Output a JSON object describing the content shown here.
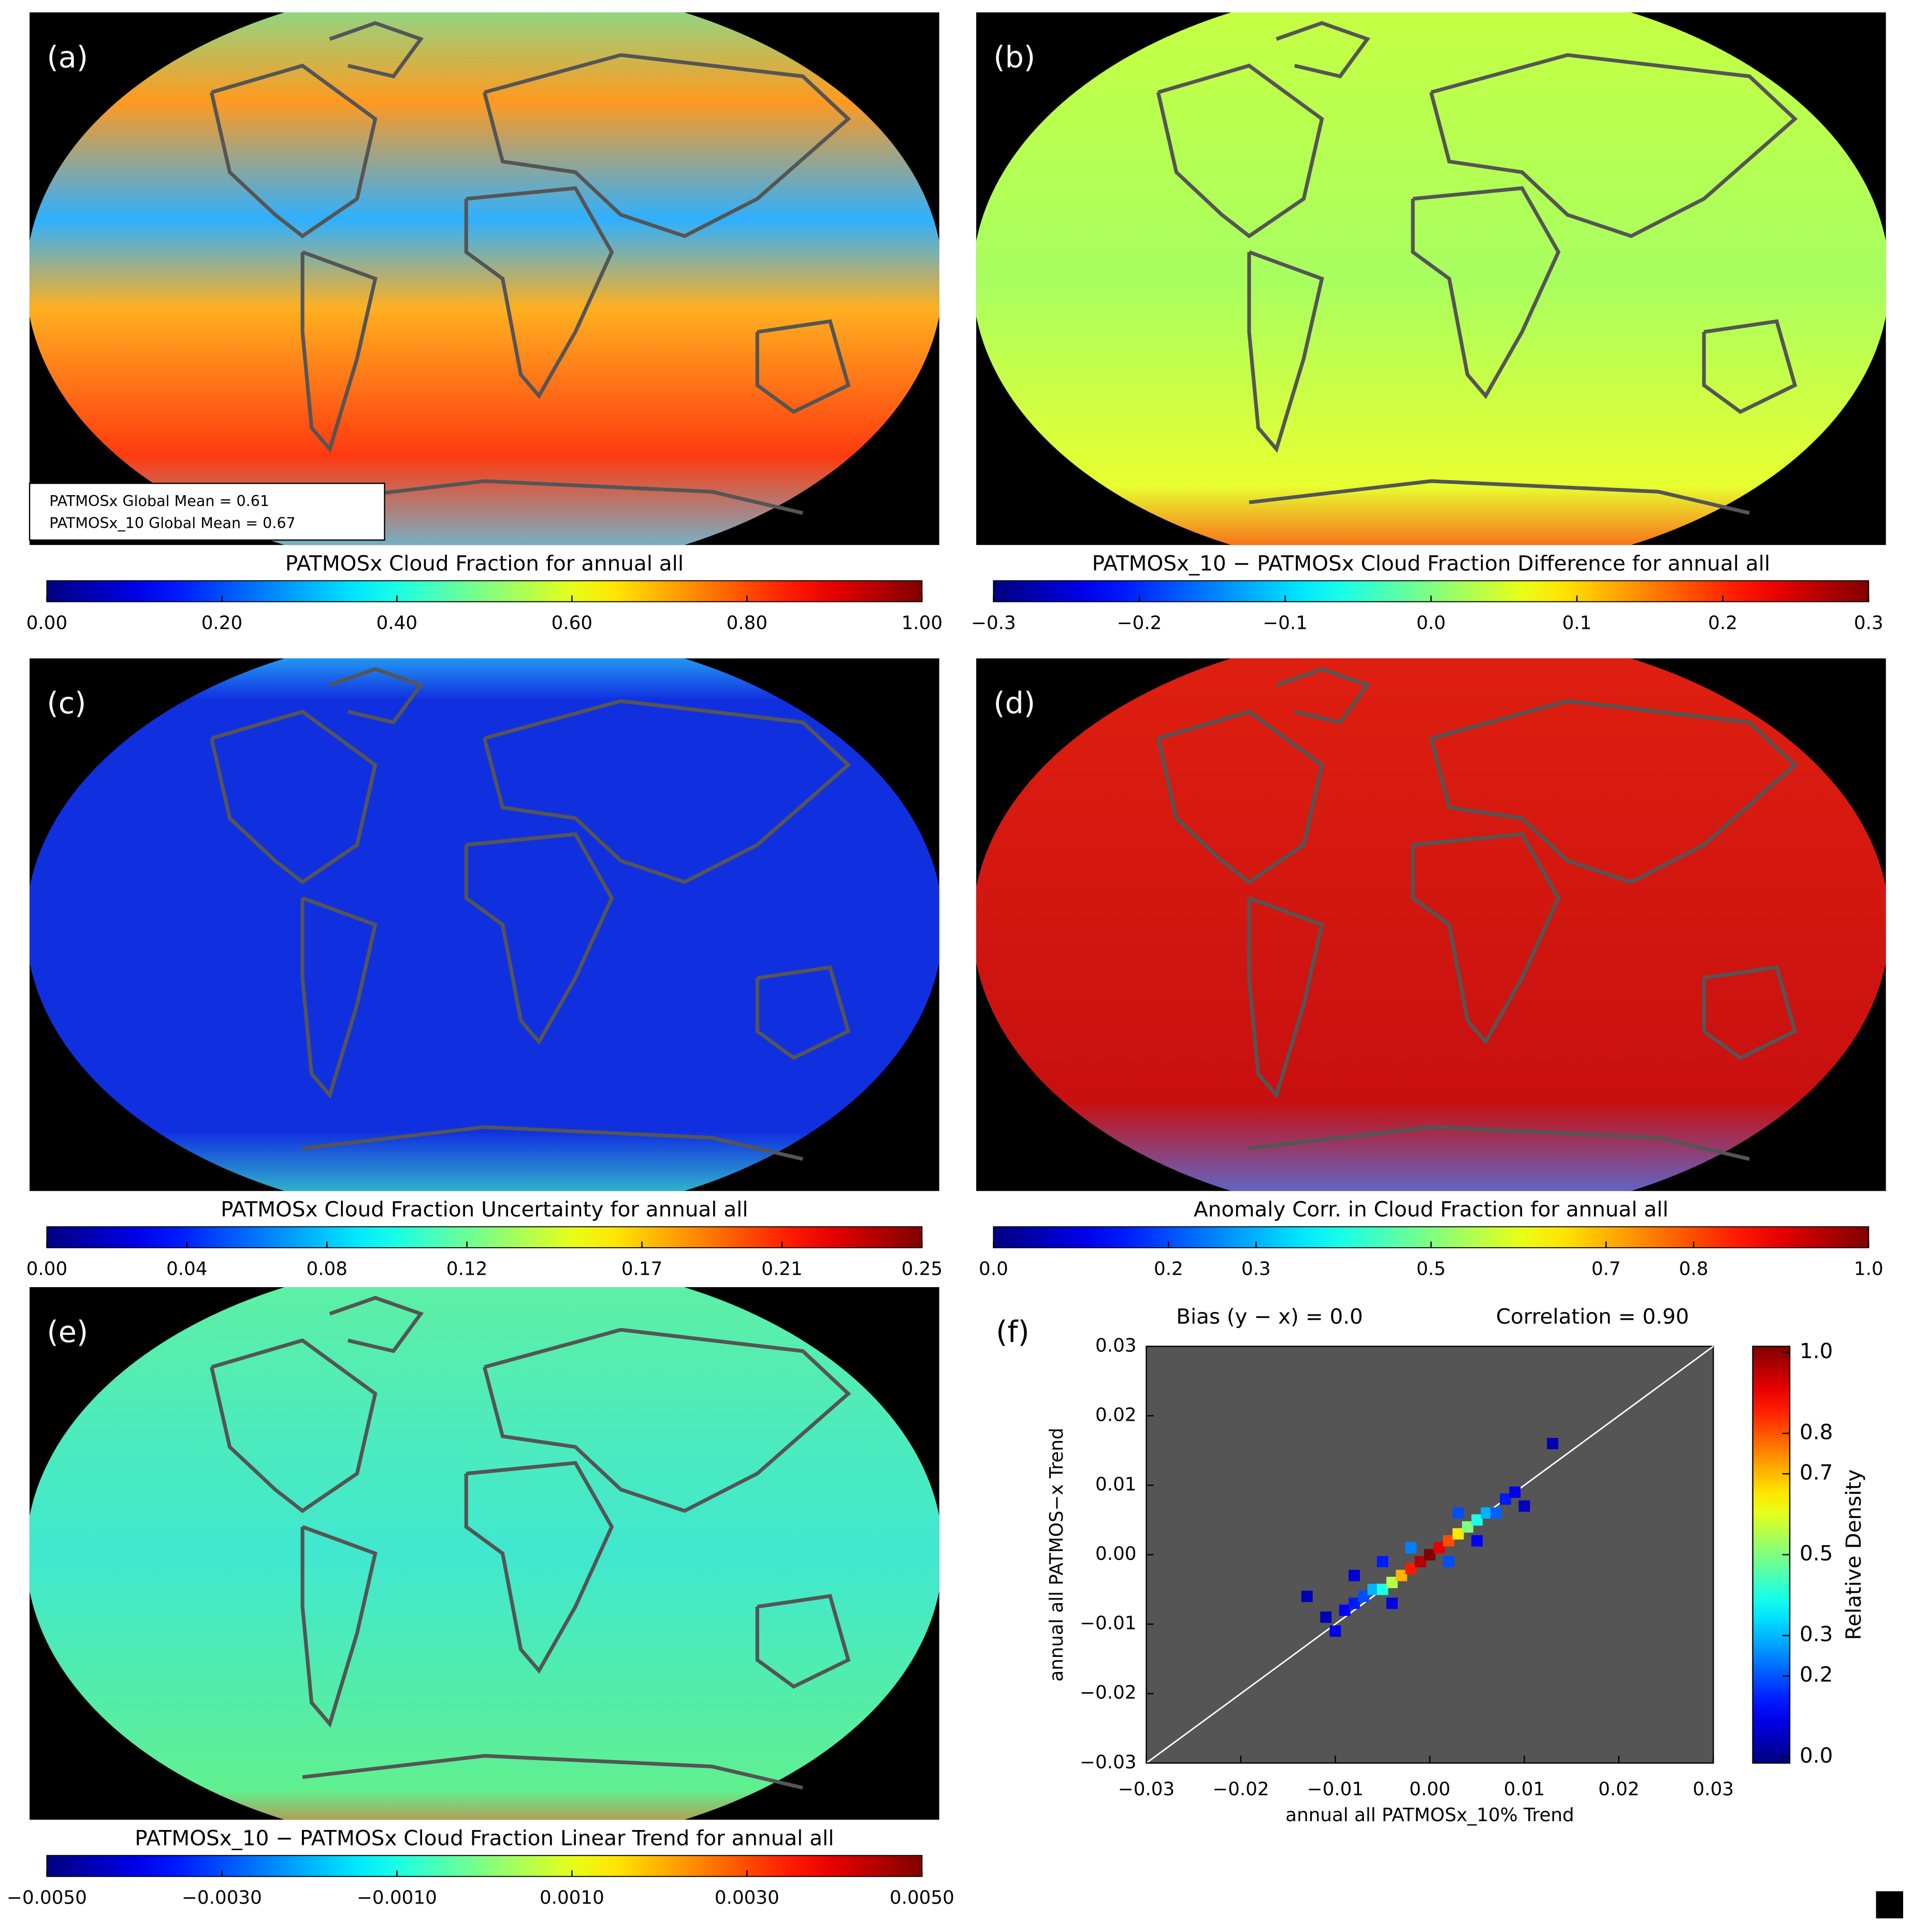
{
  "chart_data": [
    {
      "type": "map",
      "panel_label": "(a)",
      "title": "PATMOSx Cloud Fraction for annual all",
      "colormap": "jet",
      "annotations": [
        "PATMOSx Global Mean =  0.61",
        "PATMOSx_10 Global Mean =  0.67"
      ],
      "colorbar_lim": [
        0,
        1
      ],
      "colorbar_ticks": [
        {
          "value": 0,
          "label": "0.00"
        },
        {
          "value": 0.2,
          "label": "0.20"
        },
        {
          "value": 0.4,
          "label": "0.40"
        },
        {
          "value": 0.6,
          "label": "0.60"
        },
        {
          "value": 0.8,
          "label": "0.80"
        },
        {
          "value": 1,
          "label": "1.00"
        }
      ]
    },
    {
      "type": "map",
      "panel_label": "(b)",
      "title": "PATMOSx_10 − PATMOSx Cloud Fraction Difference for annual all",
      "colormap": "jet",
      "colorbar_lim": [
        -0.3,
        0.3
      ],
      "colorbar_ticks": [
        {
          "value": -0.3,
          "label": "−0.3"
        },
        {
          "value": -0.2,
          "label": "−0.2"
        },
        {
          "value": -0.1,
          "label": "−0.1"
        },
        {
          "value": 0,
          "label": "0.0"
        },
        0.1,
        0.2,
        0.3
      ]
    },
    {
      "type": "map",
      "panel_label": "(c)",
      "title": "PATMOSx Cloud Fraction Uncertainty for annual all",
      "colormap": "jet",
      "colorbar_lim": [
        0,
        0.25
      ],
      "colorbar_ticks": [
        {
          "value": 0,
          "label": "0.00"
        },
        0.04,
        0.08,
        0.12,
        0.17,
        0.21,
        0.25
      ]
    },
    {
      "type": "map",
      "panel_label": "(d)",
      "title": "Anomaly Corr. in Cloud Fraction for annual all",
      "colormap": "jet",
      "colorbar_lim": [
        0,
        1
      ],
      "colorbar_ticks": [
        {
          "value": 0,
          "label": "0.0"
        },
        0.2,
        0.3,
        0.5,
        0.7,
        0.8,
        {
          "value": 1,
          "label": "1.0"
        }
      ]
    },
    {
      "type": "map",
      "panel_label": "(e)",
      "title": "PATMOSx_10 − PATMOSx Cloud Fraction Linear Trend for annual all",
      "colormap": "jet",
      "colorbar_lim": [
        -0.005,
        0.005
      ],
      "colorbar_ticks": [
        {
          "value": -0.005,
          "label": "−0.0050"
        },
        {
          "value": -0.003,
          "label": "−0.0030"
        },
        {
          "value": -0.001,
          "label": "−0.0010"
        },
        {
          "value": 0.001,
          "label": "0.0010"
        },
        {
          "value": 0.003,
          "label": "0.0030"
        },
        {
          "value": 0.005,
          "label": "0.0050"
        }
      ]
    },
    {
      "type": "scatter",
      "panel_label": "(f)",
      "colormap": "jet",
      "annotations": [
        "Bias (y − x) =  0.0",
        "Correlation =   0.90"
      ],
      "xlabel": "annual all PATMOSx_10% Trend",
      "ylabel": "annual all PATMOS−x Trend",
      "xlim": [
        -0.03,
        0.03
      ],
      "ylim": [
        -0.03,
        0.03
      ],
      "xticks": [
        {
          "value": -0.03,
          "label": "−0.03"
        },
        {
          "value": -0.02,
          "label": "−0.02"
        },
        {
          "value": -0.01,
          "label": "−0.01"
        },
        {
          "value": 0,
          "label": "0.00"
        },
        0.01,
        0.02,
        0.03
      ],
      "yticks": [
        {
          "value": -0.03,
          "label": "−0.03"
        },
        {
          "value": -0.02,
          "label": "−0.02"
        },
        {
          "value": -0.01,
          "label": "−0.01"
        },
        {
          "value": 0,
          "label": "0.00"
        },
        0.01,
        0.02,
        0.03
      ],
      "colorbar_label": "Relative Density",
      "colorbar_lim": [
        0,
        1
      ],
      "colorbar_ticks": [
        {
          "value": 0,
          "label": "0.0"
        },
        0.2,
        0.3,
        0.5,
        0.7,
        0.8,
        {
          "value": 1,
          "label": "1.0"
        }
      ],
      "points": {
        "x": [
          -0.013,
          -0.011,
          -0.01,
          -0.009,
          -0.008,
          -0.007,
          -0.006,
          -0.005,
          -0.004,
          -0.003,
          -0.002,
          -0.001,
          0.0,
          0.001,
          0.002,
          0.003,
          0.004,
          0.005,
          0.006,
          0.007,
          0.008,
          0.009,
          -0.008,
          -0.005,
          -0.002,
          0.002,
          0.005,
          0.01,
          0.013,
          -0.004,
          0.003
        ],
        "y": [
          -0.006,
          -0.009,
          -0.011,
          -0.008,
          -0.007,
          -0.006,
          -0.005,
          -0.005,
          -0.004,
          -0.003,
          -0.002,
          -0.001,
          0.0,
          0.001,
          0.002,
          0.003,
          0.004,
          0.005,
          0.006,
          0.006,
          0.008,
          0.009,
          -0.003,
          -0.001,
          0.001,
          -0.001,
          0.002,
          0.007,
          0.016,
          -0.007,
          0.006
        ],
        "density": [
          0.05,
          0.05,
          0.1,
          0.12,
          0.15,
          0.2,
          0.3,
          0.4,
          0.55,
          0.7,
          0.85,
          0.95,
          1.0,
          0.9,
          0.8,
          0.65,
          0.5,
          0.4,
          0.3,
          0.22,
          0.15,
          0.1,
          0.08,
          0.15,
          0.25,
          0.2,
          0.12,
          0.06,
          0.05,
          0.1,
          0.2
        ]
      }
    }
  ]
}
